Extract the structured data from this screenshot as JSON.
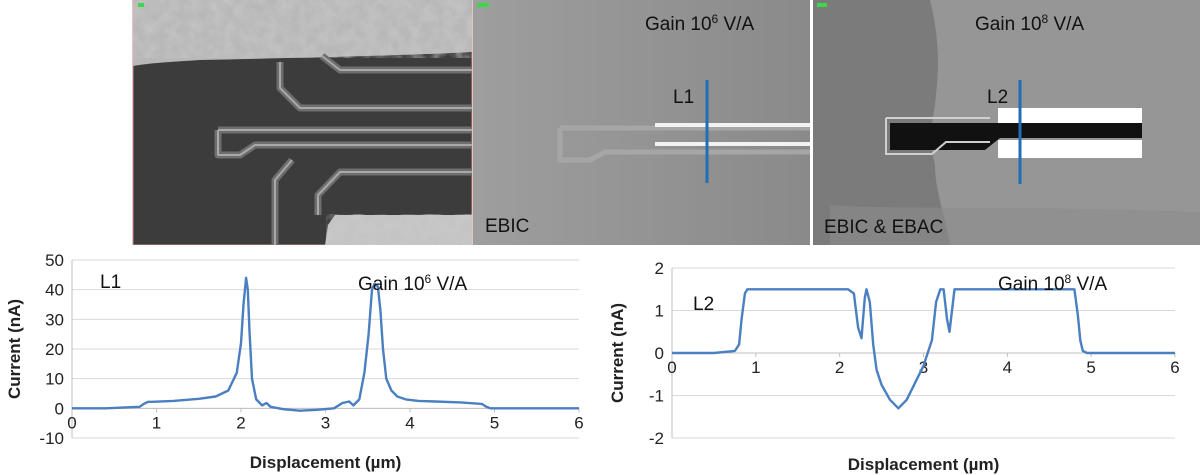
{
  "images": {
    "panels": [
      {
        "label": ""
      },
      {
        "label": "EBIC",
        "gain_text": "Gain 10",
        "gain_exp": "6",
        "gain_unit": " V/A",
        "line_label": "L1"
      },
      {
        "label": "EBIC & EBAC",
        "gain_text": "Gain 10",
        "gain_exp": "8",
        "gain_unit": " V/A",
        "line_label": "L2"
      }
    ],
    "marker_color": "#1f6fb5"
  },
  "chart_data": [
    {
      "type": "line",
      "title": "",
      "annotation": "L1",
      "gain_text": "Gain 10",
      "gain_exp": "6",
      "gain_unit": " V/A",
      "xlabel": "Displacement (µm)",
      "ylabel": "Current (nA)",
      "xlim": [
        0,
        6
      ],
      "ylim": [
        -10,
        50
      ],
      "xticks": [
        0,
        1,
        2,
        3,
        4,
        5,
        6
      ],
      "yticks": [
        -10,
        0,
        10,
        20,
        30,
        40,
        50
      ],
      "grid": "horizontal",
      "line_color": "#4a7fc1",
      "x": [
        0,
        0.4,
        0.8,
        0.85,
        0.9,
        0.95,
        1.2,
        1.5,
        1.7,
        1.85,
        1.95,
        2.0,
        2.03,
        2.06,
        2.08,
        2.1,
        2.13,
        2.18,
        2.25,
        2.3,
        2.35,
        2.5,
        2.7,
        2.9,
        3.1,
        3.2,
        3.28,
        3.33,
        3.4,
        3.46,
        3.51,
        3.55,
        3.58,
        3.62,
        3.65,
        3.68,
        3.72,
        3.78,
        3.85,
        3.95,
        4.1,
        4.3,
        4.6,
        4.85,
        4.9,
        4.95,
        5.1,
        5.5,
        6.0
      ],
      "y": [
        0,
        0,
        0.5,
        1.5,
        2.2,
        2.2,
        2.5,
        3.2,
        4,
        6,
        12,
        22,
        35,
        44,
        40,
        26,
        10,
        3,
        1,
        1.8,
        0.5,
        -0.3,
        -0.8,
        -0.5,
        0,
        1.8,
        2.3,
        1,
        3,
        12,
        25,
        40,
        42,
        41,
        33,
        20,
        10,
        6,
        4,
        3,
        2.5,
        2.3,
        2,
        1.5,
        0.6,
        0,
        0,
        0,
        0
      ]
    },
    {
      "type": "line",
      "title": "",
      "annotation": "L2",
      "gain_text": "Gain 10",
      "gain_exp": "8",
      "gain_unit": " V/A",
      "xlabel": "Displacement (µm)",
      "ylabel": "Current (nA)",
      "xlim": [
        0,
        6
      ],
      "ylim": [
        -2,
        2
      ],
      "xticks": [
        0,
        1,
        2,
        3,
        4,
        5,
        6
      ],
      "yticks": [
        -2,
        -1,
        0,
        1,
        2
      ],
      "grid": "horizontal",
      "line_color": "#4a7fc1",
      "x": [
        0,
        0.5,
        0.75,
        0.8,
        0.83,
        0.87,
        0.9,
        2.1,
        2.17,
        2.22,
        2.26,
        2.3,
        2.32,
        2.36,
        2.4,
        2.44,
        2.5,
        2.6,
        2.7,
        2.8,
        2.9,
        3.0,
        3.1,
        3.15,
        3.2,
        3.24,
        3.28,
        3.31,
        3.34,
        3.37,
        3.4,
        3.42,
        4.8,
        4.84,
        4.87,
        4.9,
        4.95,
        5.1,
        6.0
      ],
      "y": [
        0,
        0,
        0.05,
        0.2,
        0.8,
        1.4,
        1.5,
        1.5,
        1.4,
        0.6,
        0.35,
        1.3,
        1.5,
        1.2,
        0.2,
        -0.4,
        -0.75,
        -1.1,
        -1.3,
        -1.1,
        -0.7,
        -0.3,
        0.3,
        1.2,
        1.5,
        1.5,
        0.8,
        0.5,
        1.0,
        1.5,
        1.5,
        1.5,
        1.5,
        0.9,
        0.3,
        0.05,
        0,
        0,
        0
      ]
    }
  ]
}
